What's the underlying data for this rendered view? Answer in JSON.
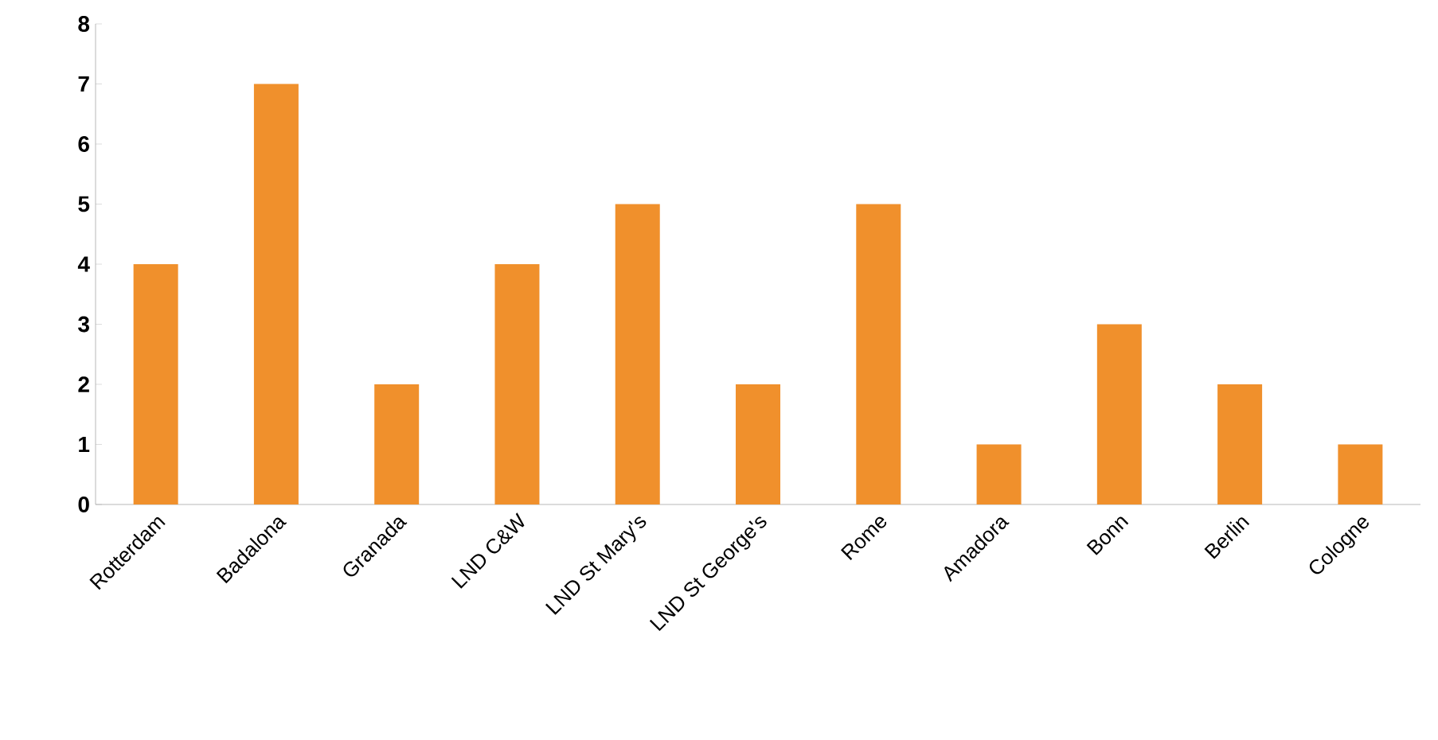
{
  "chart_data": {
    "type": "bar",
    "categories": [
      "Rotterdam",
      "Badalona",
      "Granada",
      "LND C&W",
      "LND St Mary's",
      "LND St George's",
      "Rome",
      "Amadora",
      "Bonn",
      "Berlin",
      "Cologne"
    ],
    "values": [
      4,
      7,
      2,
      4,
      5,
      2,
      5,
      1,
      3,
      2,
      1
    ],
    "color": "#f0902c",
    "ylim": [
      0,
      8
    ],
    "yticks": [
      0,
      1,
      2,
      3,
      4,
      5,
      6,
      7,
      8
    ],
    "grid": false
  }
}
